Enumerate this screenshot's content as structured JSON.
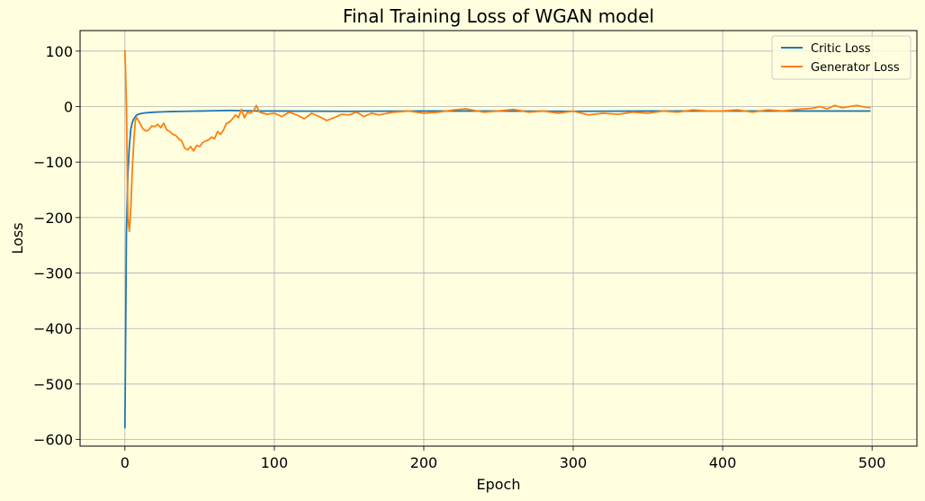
{
  "chart_data": {
    "type": "line",
    "title": "Final Training Loss of WGAN model",
    "xlabel": "Epoch",
    "ylabel": "Loss",
    "xlim": [
      -30,
      530
    ],
    "ylim": [
      -612,
      137
    ],
    "xticks": [
      0,
      100,
      200,
      300,
      400,
      500
    ],
    "yticks": [
      100,
      0,
      -100,
      -200,
      -300,
      -400,
      -500,
      -600
    ],
    "grid": true,
    "legend_position": "top-right",
    "series": [
      {
        "name": "Critic Loss",
        "color": "#1f77b4",
        "x": [
          0,
          1,
          2,
          3,
          4,
          5,
          6,
          7,
          8,
          10,
          12,
          15,
          20,
          25,
          30,
          40,
          50,
          60,
          70,
          80,
          90,
          100,
          150,
          200,
          250,
          300,
          350,
          400,
          450,
          499
        ],
        "y": [
          -580,
          -230,
          -120,
          -70,
          -40,
          -28,
          -22,
          -18,
          -15,
          -13,
          -12,
          -11,
          -10,
          -9.5,
          -9,
          -8.5,
          -8,
          -7.5,
          -7,
          -7.5,
          -8,
          -8,
          -8.5,
          -8,
          -8,
          -8.5,
          -8,
          -8,
          -8,
          -8
        ]
      },
      {
        "name": "Generator Loss",
        "color": "#ff7f0e",
        "x": [
          0,
          1,
          2,
          3,
          4,
          5,
          6,
          7,
          8,
          10,
          12,
          14,
          16,
          18,
          20,
          22,
          24,
          26,
          28,
          30,
          32,
          34,
          36,
          38,
          40,
          42,
          44,
          46,
          48,
          50,
          52,
          54,
          56,
          58,
          60,
          62,
          64,
          66,
          68,
          70,
          72,
          74,
          76,
          78,
          80,
          82,
          84,
          86,
          88,
          90,
          95,
          100,
          105,
          110,
          115,
          120,
          125,
          130,
          135,
          140,
          145,
          150,
          155,
          160,
          165,
          170,
          180,
          190,
          200,
          210,
          220,
          228,
          240,
          250,
          260,
          270,
          280,
          290,
          300,
          310,
          320,
          330,
          340,
          350,
          360,
          370,
          380,
          390,
          400,
          410,
          420,
          430,
          440,
          450,
          460,
          465,
          470,
          475,
          480,
          485,
          490,
          495,
          499
        ],
        "y": [
          102,
          5,
          -200,
          -225,
          -180,
          -110,
          -60,
          -25,
          -20,
          -30,
          -40,
          -44,
          -42,
          -35,
          -36,
          -32,
          -38,
          -30,
          -42,
          -45,
          -50,
          -52,
          -58,
          -62,
          -75,
          -78,
          -72,
          -80,
          -70,
          -72,
          -65,
          -62,
          -60,
          -55,
          -58,
          -45,
          -50,
          -42,
          -30,
          -28,
          -22,
          -15,
          -20,
          -5,
          -20,
          -10,
          -12,
          -8,
          2,
          -10,
          -14,
          -12,
          -18,
          -10,
          -15,
          -22,
          -12,
          -18,
          -25,
          -20,
          -14,
          -15,
          -10,
          -18,
          -12,
          -15,
          -10,
          -8,
          -12,
          -10,
          -6,
          -4,
          -10,
          -8,
          -5,
          -10,
          -8,
          -12,
          -8,
          -15,
          -12,
          -14,
          -10,
          -12,
          -8,
          -10,
          -6,
          -8,
          -8,
          -6,
          -10,
          -6,
          -8,
          -5,
          -3,
          0,
          -4,
          2,
          -2,
          0,
          2,
          -1,
          -2
        ]
      }
    ]
  }
}
